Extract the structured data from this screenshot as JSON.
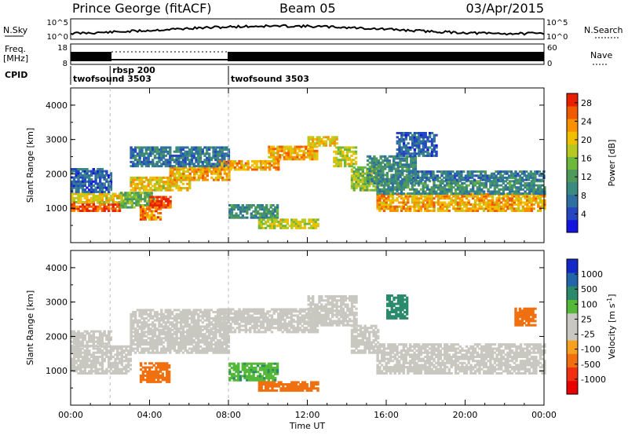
{
  "header": {
    "title": "Prince George (fitACF)",
    "beam": "Beam 05",
    "date": "03/Apr/2015"
  },
  "top_panels": {
    "nsky": {
      "label": "N.Sky",
      "tick_top": "10^5",
      "tick_bottom": "10^0"
    },
    "nsearch": {
      "label": "N.Search",
      "tick_top": "10^5",
      "tick_bottom": "10^0"
    },
    "freq": {
      "label_line1": "Freq.",
      "label_line2": "[MHz]",
      "tick_top": "18",
      "tick_bottom": "8"
    },
    "nave": {
      "label": "Nave",
      "tick_top": "60",
      "tick_bottom": "0"
    },
    "cpid": {
      "label": "CPID",
      "entries": [
        {
          "name": "twofsound 3503",
          "start_hour": 0
        },
        {
          "name": "rbsp 200",
          "start_hour": 2
        },
        {
          "name": "twofsound 3503",
          "start_hour": 8
        }
      ]
    }
  },
  "chart_data": [
    {
      "type": "heatmap",
      "parameter": "power",
      "ylabel": "Slant Range [km]",
      "ylim": [
        0,
        4500
      ],
      "yticks": [
        "1000",
        "2000",
        "3000",
        "4000"
      ],
      "xlim": [
        0,
        24
      ],
      "xticks": [
        "00:00",
        "04:00",
        "08:00",
        "12:00",
        "16:00",
        "20:00",
        "00:00"
      ],
      "colorbar": {
        "label": "Power [dB]",
        "range": [
          0,
          30
        ],
        "ticks": [
          "4",
          "8",
          "12",
          "16",
          "20",
          "24",
          "28"
        ],
        "colors": [
          "#1414e0",
          "#2546c0",
          "#2f6ea0",
          "#3b8a80",
          "#4f9a5a",
          "#6cb83a",
          "#b8c820",
          "#f0c000",
          "#f89000",
          "#f05a00",
          "#e82000"
        ]
      },
      "bands": [
        {
          "x0": 0.0,
          "x1": 2.5,
          "y0": 900,
          "y1": 1150,
          "value": 27
        },
        {
          "x0": 0.0,
          "x1": 3.0,
          "y0": 1150,
          "y1": 1450,
          "value": 20
        },
        {
          "x0": 0.0,
          "x1": 2.0,
          "y0": 1450,
          "y1": 2150,
          "value": 6
        },
        {
          "x0": 2.5,
          "x1": 4.2,
          "y0": 1000,
          "y1": 1450,
          "value": 14
        },
        {
          "x0": 3.5,
          "x1": 4.6,
          "y0": 650,
          "y1": 1050,
          "value": 24
        },
        {
          "x0": 4.0,
          "x1": 5.0,
          "y0": 1000,
          "y1": 1350,
          "value": 27
        },
        {
          "x0": 3.0,
          "x1": 6.0,
          "y0": 1500,
          "y1": 1900,
          "value": 20
        },
        {
          "x0": 5.0,
          "x1": 8.0,
          "y0": 1800,
          "y1": 2200,
          "value": 22
        },
        {
          "x0": 3.0,
          "x1": 8.0,
          "y0": 2200,
          "y1": 2800,
          "value": 8
        },
        {
          "x0": 7.5,
          "x1": 10.5,
          "y0": 2100,
          "y1": 2400,
          "value": 22
        },
        {
          "x0": 10.0,
          "x1": 12.5,
          "y0": 2400,
          "y1": 2800,
          "value": 22
        },
        {
          "x0": 12.0,
          "x1": 13.5,
          "y0": 2800,
          "y1": 3100,
          "value": 20
        },
        {
          "x0": 13.3,
          "x1": 14.5,
          "y0": 2200,
          "y1": 2800,
          "value": 18
        },
        {
          "x0": 14.2,
          "x1": 15.6,
          "y0": 1500,
          "y1": 2200,
          "value": 16
        },
        {
          "x0": 8.0,
          "x1": 10.5,
          "y0": 700,
          "y1": 1100,
          "value": 10
        },
        {
          "x0": 9.5,
          "x1": 12.5,
          "y0": 400,
          "y1": 650,
          "value": 18
        },
        {
          "x0": 15.5,
          "x1": 24.0,
          "y0": 900,
          "y1": 1400,
          "value": 22
        },
        {
          "x0": 15.5,
          "x1": 24.0,
          "y0": 1400,
          "y1": 1800,
          "value": 10
        },
        {
          "x0": 15.0,
          "x1": 17.5,
          "y0": 1700,
          "y1": 2500,
          "value": 10
        },
        {
          "x0": 17.0,
          "x1": 24.0,
          "y0": 1800,
          "y1": 2100,
          "value": 8
        },
        {
          "x0": 16.5,
          "x1": 18.5,
          "y0": 2500,
          "y1": 3200,
          "value": 6
        }
      ]
    },
    {
      "type": "heatmap",
      "parameter": "velocity",
      "ylabel": "Slant Range [km]",
      "xlabel": "Time UT",
      "ylim": [
        0,
        4500
      ],
      "yticks": [
        "1000",
        "2000",
        "3000",
        "4000"
      ],
      "xlim": [
        0,
        24
      ],
      "xticks": [
        "00:00",
        "04:00",
        "08:00",
        "12:00",
        "16:00",
        "20:00",
        "00:00"
      ],
      "colorbar": {
        "label": "Velocity [m s^-1]",
        "ticks": [
          "1000",
          "500",
          "100",
          "25",
          "-25",
          "-100",
          "-500",
          "-1000"
        ],
        "colors": [
          "#1428c8",
          "#2464a8",
          "#2c8a6c",
          "#54b838",
          "#c8c8c0",
          "#c8c8c0",
          "#f8a020",
          "#f07010",
          "#f03010",
          "#e80000"
        ]
      },
      "bands": [
        {
          "x0": 0.0,
          "x1": 3.0,
          "y0": 900,
          "y1": 1700,
          "value": 0
        },
        {
          "x0": 0.0,
          "x1": 2.0,
          "y0": 1700,
          "y1": 2150,
          "value": 0
        },
        {
          "x0": 3.5,
          "x1": 5.0,
          "y0": 650,
          "y1": 1250,
          "value": -150
        },
        {
          "x0": 3.0,
          "x1": 8.0,
          "y0": 1500,
          "y1": 2200,
          "value": 0
        },
        {
          "x0": 3.0,
          "x1": 8.0,
          "y0": 2200,
          "y1": 2800,
          "value": 0
        },
        {
          "x0": 7.5,
          "x1": 12.5,
          "y0": 2100,
          "y1": 2800,
          "value": 0
        },
        {
          "x0": 12.0,
          "x1": 14.5,
          "y0": 2300,
          "y1": 3200,
          "value": 0
        },
        {
          "x0": 14.2,
          "x1": 15.6,
          "y0": 1500,
          "y1": 2300,
          "value": 0
        },
        {
          "x0": 8.0,
          "x1": 10.5,
          "y0": 700,
          "y1": 1200,
          "value": 40
        },
        {
          "x0": 9.5,
          "x1": 12.5,
          "y0": 400,
          "y1": 650,
          "value": -200
        },
        {
          "x0": 15.5,
          "x1": 24.0,
          "y0": 900,
          "y1": 1800,
          "value": 0
        },
        {
          "x0": 16.0,
          "x1": 17.0,
          "y0": 2500,
          "y1": 3200,
          "value": 80
        },
        {
          "x0": 22.5,
          "x1": 23.5,
          "y0": 2300,
          "y1": 2800,
          "value": -150
        }
      ]
    }
  ]
}
